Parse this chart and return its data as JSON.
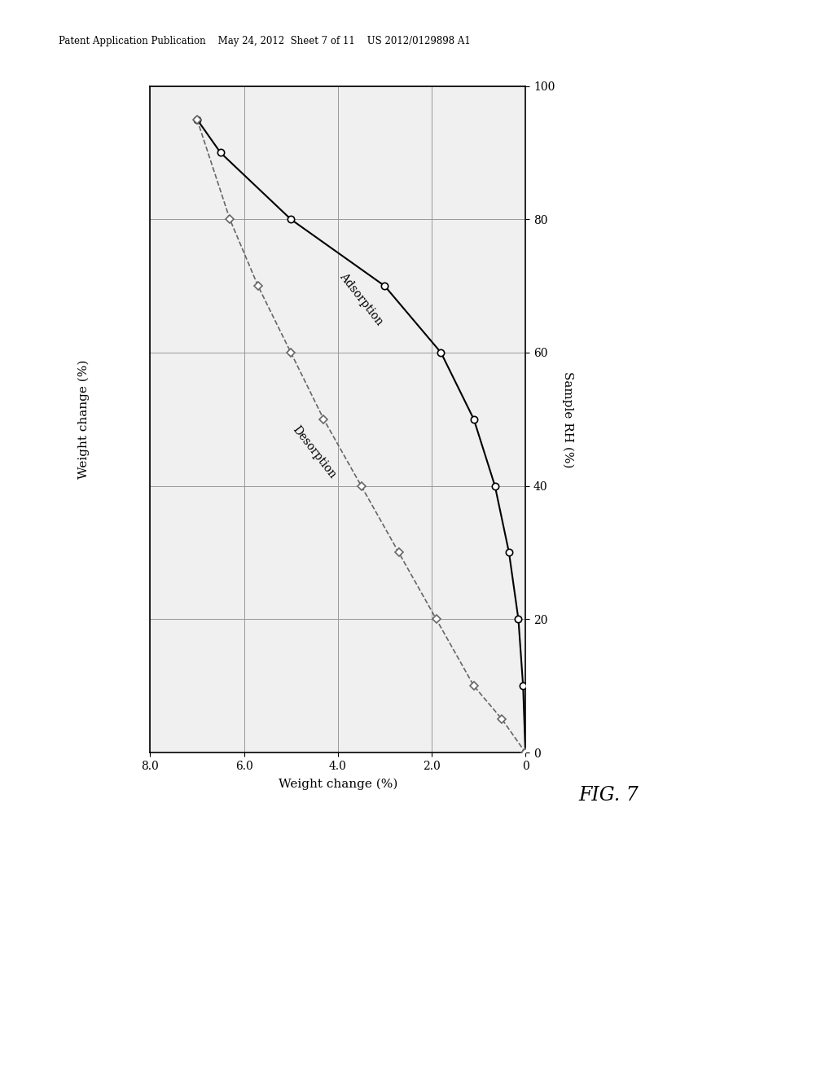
{
  "title": "FIG. 7",
  "xlabel_rotated": "Sample RH (%)",
  "ylabel_rotated": "Weight change (%)",
  "header_text": "Patent Application Publication    May 24, 2012  Sheet 7 of 11    US 2012/0129898 A1",
  "adsorption_rh": [
    0,
    10,
    20,
    30,
    40,
    50,
    60,
    70,
    80,
    90,
    95
  ],
  "adsorption_wc": [
    0.0,
    0.05,
    0.15,
    0.35,
    0.65,
    1.1,
    1.8,
    3.0,
    5.0,
    6.5,
    7.0
  ],
  "desorption_rh": [
    95,
    80,
    70,
    60,
    50,
    40,
    30,
    20,
    10,
    5,
    0
  ],
  "desorption_wc": [
    7.0,
    6.3,
    5.7,
    5.0,
    4.3,
    3.5,
    2.7,
    1.9,
    1.1,
    0.5,
    0.0
  ],
  "adsorption_color": "#000000",
  "desorption_color": "#666666",
  "background_color": "#f0f0f0",
  "rh_lim": [
    0,
    100
  ],
  "wc_lim": [
    0,
    8.0
  ],
  "rh_ticks": [
    0,
    20,
    40,
    60,
    80,
    100
  ],
  "wc_ticks": [
    0,
    2.0,
    4.0,
    6.0,
    8.0
  ],
  "wc_tick_labels": [
    "0",
    "2.0",
    "4.0",
    "6.0",
    "8.0"
  ],
  "grid_color": "#999999",
  "fig_width": 10.24,
  "fig_height": 13.2,
  "adsorption_label_rh": 70,
  "adsorption_label_wc": 3.2,
  "desorption_label_rh": 50,
  "desorption_label_wc": 4.0
}
